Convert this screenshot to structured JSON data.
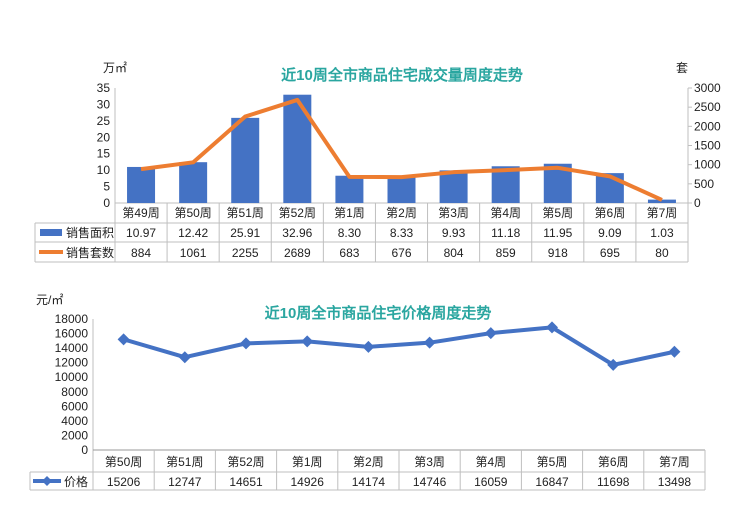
{
  "chart_data": [
    {
      "type": "bar",
      "title": "近10周全市商品住宅成交量周度走势",
      "ylabel": "万㎡",
      "y2label": "套",
      "ylim": [
        0,
        35
      ],
      "y2lim": [
        0,
        3000
      ],
      "yticks": [
        "0",
        "5",
        "10",
        "15",
        "20",
        "25",
        "30",
        "35"
      ],
      "y2ticks": [
        "0",
        "500",
        "1000",
        "1500",
        "2000",
        "2500",
        "3000"
      ],
      "categories": [
        "第49周",
        "第50周",
        "第51周",
        "第52周",
        "第1周",
        "第2周",
        "第3周",
        "第4周",
        "第5周",
        "第6周",
        "第7周"
      ],
      "series": [
        {
          "name": "销售面积",
          "type": "bar",
          "axis": "left",
          "color": "#4472c4",
          "values": [
            10.97,
            12.42,
            25.91,
            32.96,
            8.3,
            8.33,
            9.93,
            11.18,
            11.95,
            9.09,
            1.03
          ],
          "labels": [
            "10.97",
            "12.42",
            "25.91",
            "32.96",
            "8.30",
            "8.33",
            "9.93",
            "11.18",
            "11.95",
            "9.09",
            "1.03"
          ]
        },
        {
          "name": "销售套数",
          "type": "line",
          "axis": "right",
          "color": "#ed7d31",
          "values": [
            884,
            1061,
            2255,
            2689,
            683,
            676,
            804,
            859,
            918,
            695,
            80
          ],
          "labels": [
            "884",
            "1061",
            "2255",
            "2689",
            "683",
            "676",
            "804",
            "859",
            "918",
            "695",
            "80"
          ]
        }
      ],
      "legend": "data-table"
    },
    {
      "type": "line",
      "title": "近10周全市商品住宅价格周度走势",
      "ylabel": "元/㎡",
      "ylim": [
        0,
        18000
      ],
      "yticks": [
        "0",
        "2000",
        "4000",
        "6000",
        "8000",
        "10000",
        "12000",
        "14000",
        "16000",
        "18000"
      ],
      "categories": [
        "第50周",
        "第51周",
        "第52周",
        "第1周",
        "第2周",
        "第3周",
        "第4周",
        "第5周",
        "第6周",
        "第7周"
      ],
      "series": [
        {
          "name": "价格",
          "type": "line",
          "color": "#4472c4",
          "values": [
            15206,
            12747,
            14651,
            14926,
            14174,
            14746,
            16059,
            16847,
            11698,
            13498
          ],
          "labels": [
            "15206",
            "12747",
            "14651",
            "14926",
            "14174",
            "14746",
            "16059",
            "16847",
            "11698",
            "13498"
          ]
        }
      ],
      "legend": "data-table"
    }
  ]
}
